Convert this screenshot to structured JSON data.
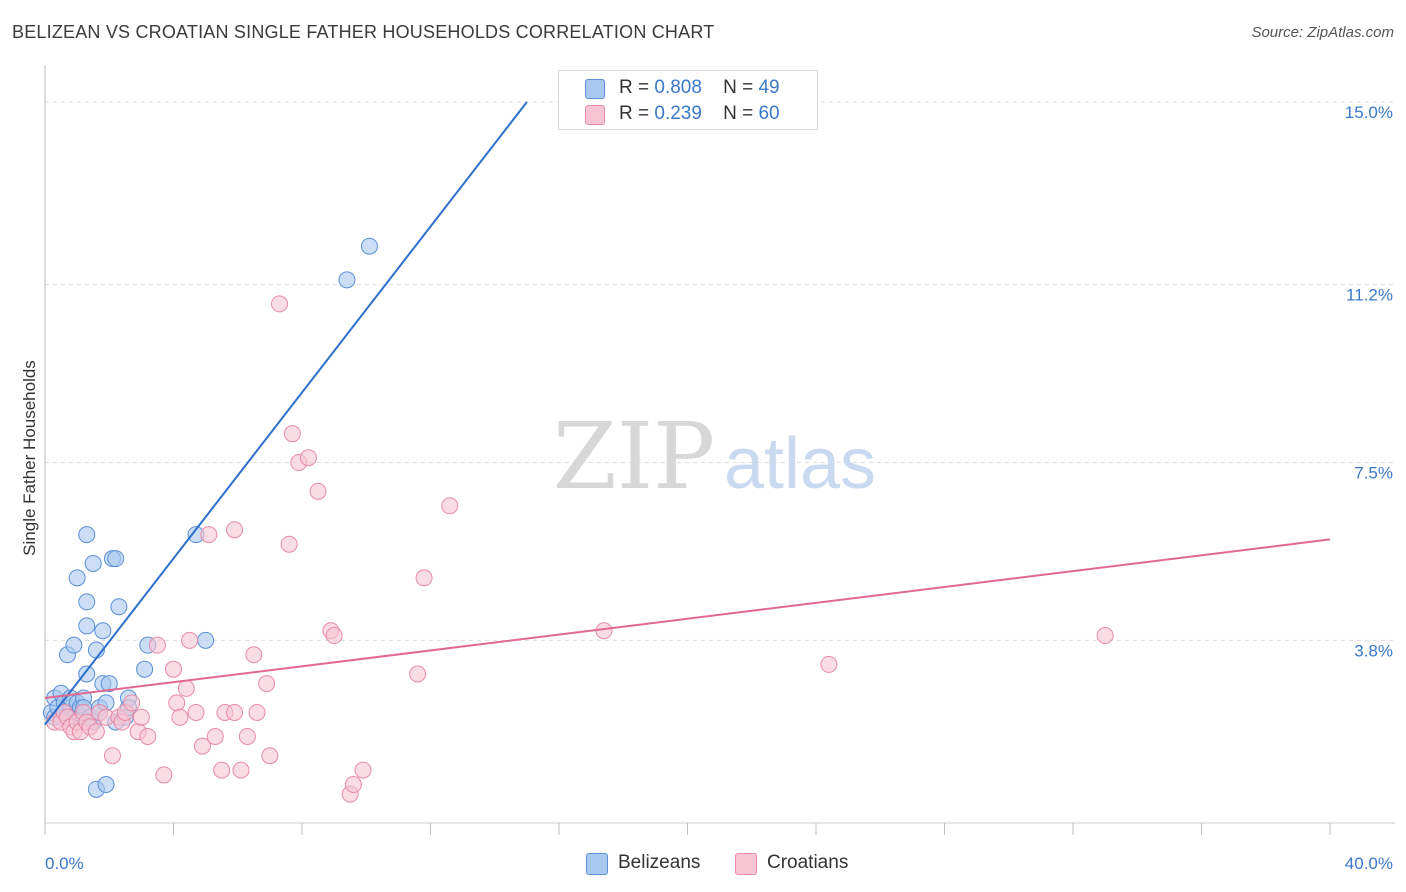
{
  "title": "BELIZEAN VS CROATIAN SINGLE FATHER HOUSEHOLDS CORRELATION CHART",
  "source": "Source: ZipAtlas.com",
  "watermark": {
    "zip": "ZIP",
    "atlas": "atlas"
  },
  "legend": {
    "belizeans": {
      "r_label": "R =",
      "r_value": "0.808",
      "n_label": "N =",
      "n_value": "49"
    },
    "croatians": {
      "r_label": "R =",
      "r_value": "0.239",
      "n_label": "N =",
      "n_value": "60"
    }
  },
  "colors": {
    "blue_fill": "#a9c8ef",
    "blue_stroke": "#5b8fd6",
    "blue_line": "#2e6fcc",
    "pink_fill": "#f6c4d3",
    "pink_stroke": "#e88aa7",
    "pink_line": "#e0698f",
    "tick_text": "#3a78c9",
    "grid": "#dddddd"
  },
  "chart_data": {
    "type": "scatter",
    "title": "BELIZEAN VS CROATIAN SINGLE FATHER HOUSEHOLDS CORRELATION CHART",
    "xlabel": "",
    "ylabel": "Single Father Households",
    "xlim": [
      0,
      40
    ],
    "ylim": [
      0,
      15.5
    ],
    "x_tick_labels": [
      "0.0%",
      "40.0%"
    ],
    "y_ticks": [
      3.8,
      7.5,
      11.2,
      15.0
    ],
    "y_tick_labels": [
      "3.8%",
      "7.5%",
      "11.2%",
      "15.0%"
    ],
    "grid": true,
    "legend_position": "bottom",
    "series": [
      {
        "name": "Belizeans",
        "color": "#5b8fd6",
        "points": [
          [
            0.2,
            2.3
          ],
          [
            0.3,
            2.6
          ],
          [
            0.3,
            2.2
          ],
          [
            0.4,
            2.4
          ],
          [
            0.5,
            2.7
          ],
          [
            0.5,
            2.2
          ],
          [
            0.6,
            2.5
          ],
          [
            0.6,
            2.3
          ],
          [
            0.7,
            3.5
          ],
          [
            0.8,
            2.4
          ],
          [
            0.8,
            2.6
          ],
          [
            0.9,
            2.2
          ],
          [
            1.0,
            2.3
          ],
          [
            1.0,
            2.5
          ],
          [
            0.9,
            3.7
          ],
          [
            1.0,
            5.1
          ],
          [
            1.1,
            2.4
          ],
          [
            1.1,
            2.2
          ],
          [
            1.2,
            2.6
          ],
          [
            1.2,
            2.4
          ],
          [
            1.3,
            3.1
          ],
          [
            1.3,
            4.6
          ],
          [
            1.3,
            4.1
          ],
          [
            1.3,
            6.0
          ],
          [
            1.4,
            2.2
          ],
          [
            1.5,
            5.4
          ],
          [
            1.5,
            2.1
          ],
          [
            1.6,
            3.6
          ],
          [
            1.6,
            0.7
          ],
          [
            1.7,
            2.4
          ],
          [
            1.7,
            2.3
          ],
          [
            1.8,
            2.9
          ],
          [
            1.8,
            4.0
          ],
          [
            1.9,
            2.5
          ],
          [
            1.9,
            0.8
          ],
          [
            2.0,
            2.9
          ],
          [
            2.1,
            5.5
          ],
          [
            2.2,
            2.1
          ],
          [
            2.2,
            5.5
          ],
          [
            2.3,
            4.5
          ],
          [
            2.5,
            2.2
          ],
          [
            2.6,
            2.6
          ],
          [
            2.6,
            2.4
          ],
          [
            3.1,
            3.2
          ],
          [
            3.2,
            3.7
          ],
          [
            4.7,
            6.0
          ],
          [
            5.0,
            3.8
          ],
          [
            9.4,
            11.3
          ],
          [
            10.1,
            12.0
          ]
        ],
        "trend": {
          "x": [
            0.0,
            15.0
          ],
          "y": [
            2.05,
            15.0
          ]
        }
      },
      {
        "name": "Croatians",
        "color": "#e88aa7",
        "points": [
          [
            0.3,
            2.1
          ],
          [
            0.5,
            2.1
          ],
          [
            0.6,
            2.3
          ],
          [
            0.7,
            2.2
          ],
          [
            0.8,
            2.0
          ],
          [
            0.9,
            1.9
          ],
          [
            1.0,
            2.1
          ],
          [
            1.1,
            1.9
          ],
          [
            1.2,
            2.3
          ],
          [
            1.3,
            2.1
          ],
          [
            1.4,
            2.0
          ],
          [
            1.6,
            1.9
          ],
          [
            1.7,
            2.3
          ],
          [
            1.9,
            2.2
          ],
          [
            2.1,
            1.4
          ],
          [
            2.3,
            2.2
          ],
          [
            2.4,
            2.1
          ],
          [
            2.5,
            2.3
          ],
          [
            2.7,
            2.5
          ],
          [
            2.9,
            1.9
          ],
          [
            3.0,
            2.2
          ],
          [
            3.2,
            1.8
          ],
          [
            3.5,
            3.7
          ],
          [
            3.7,
            1.0
          ],
          [
            4.0,
            3.2
          ],
          [
            4.1,
            2.5
          ],
          [
            4.2,
            2.2
          ],
          [
            4.4,
            2.8
          ],
          [
            4.5,
            3.8
          ],
          [
            4.7,
            2.3
          ],
          [
            4.9,
            1.6
          ],
          [
            5.1,
            6.0
          ],
          [
            5.3,
            1.8
          ],
          [
            5.5,
            1.1
          ],
          [
            5.6,
            2.3
          ],
          [
            5.9,
            6.1
          ],
          [
            5.9,
            2.3
          ],
          [
            6.1,
            1.1
          ],
          [
            6.3,
            1.8
          ],
          [
            6.5,
            3.5
          ],
          [
            6.6,
            2.3
          ],
          [
            6.9,
            2.9
          ],
          [
            7.0,
            1.4
          ],
          [
            7.3,
            10.8
          ],
          [
            7.6,
            5.8
          ],
          [
            7.7,
            8.1
          ],
          [
            7.9,
            7.5
          ],
          [
            8.2,
            7.6
          ],
          [
            8.5,
            6.9
          ],
          [
            8.9,
            4.0
          ],
          [
            9.0,
            3.9
          ],
          [
            9.5,
            0.6
          ],
          [
            9.6,
            0.8
          ],
          [
            9.9,
            1.1
          ],
          [
            11.6,
            3.1
          ],
          [
            11.8,
            5.1
          ],
          [
            12.6,
            6.6
          ],
          [
            17.4,
            4.0
          ],
          [
            24.4,
            3.3
          ],
          [
            33.0,
            3.9
          ]
        ],
        "trend": {
          "x": [
            0.0,
            40.0
          ],
          "y": [
            2.6,
            5.9
          ]
        }
      }
    ]
  },
  "bottom_legend": {
    "belizeans": "Belizeans",
    "croatians": "Croatians"
  }
}
